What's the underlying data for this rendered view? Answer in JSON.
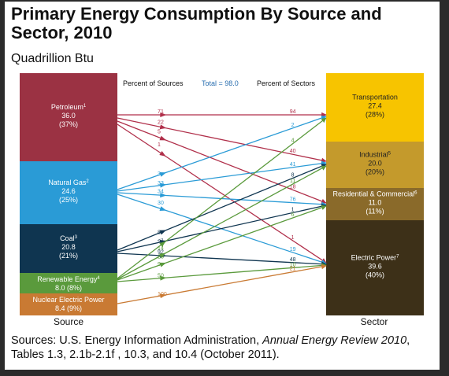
{
  "title": "Primary Energy Consumption By Source and Sector, 2010",
  "subtitle": "Quadrillion Btu",
  "header": {
    "percent_of_sources": "Percent of Sources",
    "total": "Total = 98.0",
    "percent_of_sectors": "Percent of Sectors"
  },
  "column_labels": {
    "source": "Source",
    "sector": "Sector"
  },
  "sources": [
    {
      "id": "petroleum",
      "name": "Petroleum",
      "note": "1",
      "value": "36.0",
      "pct": "(37%)",
      "color": "#9b3243"
    },
    {
      "id": "gas",
      "name": "Natural Gas",
      "note": "2",
      "value": "24.6",
      "pct": "(25%)",
      "color": "#2a9bd6"
    },
    {
      "id": "coal",
      "name": "Coal",
      "note": "3",
      "value": "20.8",
      "pct": "(21%)",
      "color": "#0f3550"
    },
    {
      "id": "renewable",
      "name": "Renewable Energy",
      "note": "4",
      "value": "8.0",
      "pct": "(8%)",
      "color": "#5a9a3c"
    },
    {
      "id": "nuclear",
      "name": "Nuclear Electric Power",
      "note": "",
      "value": "8.4",
      "pct": "(9%)",
      "color": "#c97a33"
    }
  ],
  "sectors": [
    {
      "id": "transport",
      "name": "Transportation",
      "note": "",
      "value": "27.4",
      "pct": "(28%)",
      "color": "#f7c400"
    },
    {
      "id": "industrial",
      "name": "Industrial",
      "note": "5",
      "value": "20.0",
      "pct": "(20%)",
      "color": "#c49a2c"
    },
    {
      "id": "residential",
      "name": "Residential & Commercial",
      "note": "6",
      "value": "11.0",
      "pct": "(11%)",
      "color": "#8a6a2a"
    },
    {
      "id": "electric",
      "name": "Electric Power",
      "note": "7",
      "value": "39.6",
      "pct": "(40%)",
      "color": "#3d3018"
    }
  ],
  "flows": [
    {
      "from": "petroleum",
      "to": "transport",
      "src_pct": "71",
      "dst_pct": "94",
      "color": "#b02f4a"
    },
    {
      "from": "petroleum",
      "to": "industrial",
      "src_pct": "22",
      "dst_pct": "40",
      "color": "#b02f4a"
    },
    {
      "from": "petroleum",
      "to": "residential",
      "src_pct": "5",
      "dst_pct": "18",
      "color": "#b02f4a"
    },
    {
      "from": "petroleum",
      "to": "electric",
      "src_pct": "1",
      "dst_pct": "1",
      "color": "#b02f4a"
    },
    {
      "from": "gas",
      "to": "transport",
      "src_pct": "3",
      "dst_pct": "2",
      "color": "#2a9bd6"
    },
    {
      "from": "gas",
      "to": "industrial",
      "src_pct": "33",
      "dst_pct": "41",
      "color": "#2a9bd6"
    },
    {
      "from": "gas",
      "to": "residential",
      "src_pct": "34",
      "dst_pct": "76",
      "color": "#2a9bd6"
    },
    {
      "from": "gas",
      "to": "electric",
      "src_pct": "30",
      "dst_pct": "19",
      "color": "#2a9bd6"
    },
    {
      "from": "coal",
      "to": "industrial",
      "src_pct": "8",
      "dst_pct": "8",
      "color": "#0f3550"
    },
    {
      "from": "coal",
      "to": "residential",
      "src_pct": "<1",
      "dst_pct": "1",
      "color": "#0f3550"
    },
    {
      "from": "coal",
      "to": "electric",
      "src_pct": "92",
      "dst_pct": "48",
      "color": "#0f3550"
    },
    {
      "from": "renewable",
      "to": "transport",
      "src_pct": "14",
      "dst_pct": "4",
      "color": "#5a9a3c"
    },
    {
      "from": "renewable",
      "to": "industrial",
      "src_pct": "28",
      "dst_pct": "11",
      "color": "#5a9a3c"
    },
    {
      "from": "renewable",
      "to": "residential",
      "src_pct": "9",
      "dst_pct": "6",
      "color": "#5a9a3c"
    },
    {
      "from": "renewable",
      "to": "electric",
      "src_pct": "50",
      "dst_pct": "10",
      "color": "#5a9a3c"
    },
    {
      "from": "nuclear",
      "to": "electric",
      "src_pct": "100",
      "dst_pct": "21",
      "color": "#c97a33"
    }
  ],
  "footer": {
    "prefix": "Sources: U.S. Energy Information Administration, ",
    "italic": "Annual Energy Review 2010",
    "suffix": ", Tables 1.3, 2.1b-2.1f , 10.3, and 10.4 (October 2011)."
  }
}
